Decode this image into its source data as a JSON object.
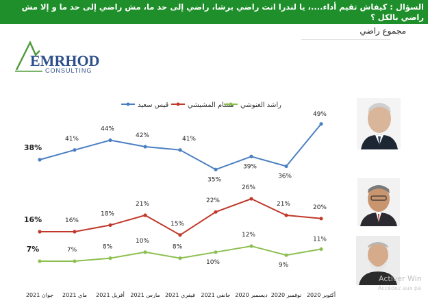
{
  "header": {
    "question": "السؤال : كيفاش تقيم أداء....، يا لندرا انت راضي برشا، راضي إلى حد ما، مش راضي إلى حد ما و إلا مش راضي بالكل ؟"
  },
  "subtitle": "مجموع راضي",
  "logo": {
    "main": "EMRHOD",
    "sub": "CONSULTING"
  },
  "watermark": {
    "line1": "Activer Win",
    "line2": "Accédez aux pa"
  },
  "colors": {
    "header": "#1e8f2a",
    "series1": "#4a7fc1",
    "series2": "#c0392b",
    "series3": "#8cbf4f"
  },
  "chart_data": {
    "type": "line",
    "categories": [
      "جوان 2021",
      "ماي 2021",
      "أفريل 2021",
      "مارس 2021",
      "فيفري 2021",
      "جانفي 2021",
      "ديسمبر 2020",
      "نوفمبر 2020",
      "أكتوبر 2020"
    ],
    "ylim": [
      0,
      55
    ],
    "legend_position": "top",
    "series": [
      {
        "name": "قيس سعيد",
        "color": "#4a7fc1",
        "values": [
          38,
          41,
          44,
          42,
          41,
          35,
          39,
          36,
          49
        ],
        "labels": [
          "38%",
          "41%",
          "44%",
          "42%",
          "41%",
          "35%",
          "39%",
          "36%",
          "49%"
        ]
      },
      {
        "name": "هشام المشيشي",
        "color": "#c0392b",
        "values": [
          16,
          16,
          18,
          21,
          15,
          22,
          26,
          21,
          20
        ],
        "labels": [
          "16%",
          "16%",
          "18%",
          "21%",
          "15%",
          "22%",
          "26%",
          "21%",
          "20%"
        ]
      },
      {
        "name": "راشد الغنوشي",
        "color": "#8cbf4f",
        "values": [
          7,
          7,
          8,
          10,
          8,
          10,
          12,
          9,
          11
        ],
        "labels": [
          "7%",
          "7%",
          "8%",
          "10%",
          "8%",
          "10%",
          "12%",
          "9%",
          "11%"
        ]
      }
    ]
  }
}
